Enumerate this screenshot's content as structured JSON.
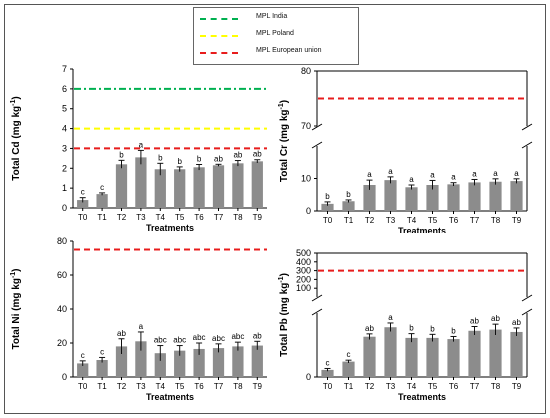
{
  "legend": {
    "items": [
      {
        "label": "MPL India",
        "color": "#00b050",
        "style": "dashdot"
      },
      {
        "label": "MPL Poland",
        "color": "#ffff00",
        "style": "dashed"
      },
      {
        "label": "MPL European union",
        "color": "#e81c1c",
        "style": "dashed"
      }
    ]
  },
  "colors": {
    "bar": "#8c8c8c",
    "axis": "#000000"
  },
  "chart_data": [
    {
      "id": "cd",
      "type": "bar",
      "ylabel": "Total Cd (mg kg-1)",
      "ylabel_parts": [
        "Total Cd (mg kg",
        "-1",
        ")"
      ],
      "xlabel": "Treatments",
      "categories": [
        "T0",
        "T1",
        "T2",
        "T3",
        "T4",
        "T5",
        "T6",
        "T7",
        "T8",
        "T9"
      ],
      "values": [
        0.4,
        0.7,
        2.2,
        2.55,
        1.95,
        1.95,
        2.05,
        2.15,
        2.25,
        2.35
      ],
      "errors": [
        0.12,
        0.06,
        0.2,
        0.35,
        0.3,
        0.12,
        0.14,
        0.05,
        0.14,
        0.08
      ],
      "letters": [
        "c",
        "c",
        "b",
        "a",
        "b",
        "b",
        "b",
        "ab",
        "ab",
        "ab"
      ],
      "ylim": [
        0,
        7
      ],
      "yticks": [
        "0",
        "1",
        "2",
        "3",
        "4",
        "5",
        "6",
        "7"
      ],
      "hlines": [
        {
          "y": 6,
          "legend": 0
        },
        {
          "y": 4,
          "legend": 1
        },
        {
          "y": 3,
          "legend": 2
        }
      ]
    },
    {
      "id": "cr",
      "type": "bar",
      "ylabel": "Total Cr (mg kg-1)",
      "ylabel_parts": [
        "Total Cr (mg kg",
        "-1",
        ")"
      ],
      "xlabel": "Treatments",
      "categories": [
        "T0",
        "T1",
        "T2",
        "T3",
        "T4",
        "T5",
        "T6",
        "T7",
        "T8",
        "T9"
      ],
      "values": [
        2.2,
        3.0,
        8.0,
        9.5,
        7.3,
        8.0,
        8.2,
        8.8,
        9.0,
        9.2
      ],
      "errors": [
        0.6,
        0.4,
        1.5,
        1.0,
        0.7,
        1.4,
        0.5,
        0.9,
        0.9,
        0.7
      ],
      "letters": [
        "b",
        "b",
        "a",
        "a",
        "a",
        "a",
        "a",
        "a",
        "a",
        "a"
      ],
      "ylim": [
        0,
        20
      ],
      "ylim_upper": [
        70,
        80
      ],
      "yticks_lower": [
        "0",
        "10"
      ],
      "yticks_upper": [
        "70",
        "80"
      ],
      "axis_break": true,
      "hlines": [
        {
          "y": 75,
          "legend": 2
        }
      ]
    },
    {
      "id": "ni",
      "type": "bar",
      "ylabel": "Total Ni (mg kg-1)",
      "ylabel_parts": [
        "Total Ni (mg kg",
        "-1",
        ")"
      ],
      "xlabel": "Treatments",
      "categories": [
        "T0",
        "T1",
        "T2",
        "T3",
        "T4",
        "T5",
        "T6",
        "T7",
        "T8",
        "T9"
      ],
      "values": [
        8,
        10,
        18,
        21,
        14,
        15.5,
        16.5,
        17,
        18,
        18.5
      ],
      "errors": [
        1.5,
        1.5,
        4.5,
        5.5,
        4.5,
        3.0,
        3.5,
        2.5,
        2.5,
        2.5
      ],
      "letters": [
        "c",
        "c",
        "ab",
        "a",
        "abc",
        "abc",
        "abc",
        "abc",
        "abc",
        "ab"
      ],
      "ylim": [
        0,
        80
      ],
      "yticks": [
        "0",
        "20",
        "40",
        "60",
        "80"
      ],
      "hlines": [
        {
          "y": 75,
          "legend": 2
        }
      ]
    },
    {
      "id": "pb",
      "type": "bar",
      "ylabel": "Total Pb (mg kg-1)",
      "ylabel_parts": [
        "Total Pb (mg kg",
        "-1",
        ")"
      ],
      "xlabel": "Treatments",
      "categories": [
        "T0",
        "T1",
        "T2",
        "T3",
        "T4",
        "T5",
        "T6",
        "T7",
        "T8",
        "T9"
      ],
      "values": [
        3,
        6.5,
        17,
        21,
        16.5,
        16.5,
        16,
        19.5,
        20,
        19
      ],
      "errors": [
        0.6,
        0.6,
        1.2,
        1.8,
        1.8,
        1.5,
        1.1,
        1.8,
        2.3,
        1.7
      ],
      "letters": [
        "c",
        "c",
        "ab",
        "a",
        "b",
        "b",
        "b",
        "ab",
        "ab",
        "ab"
      ],
      "ylim": [
        0,
        27
      ],
      "ylim_upper": [
        0,
        500
      ],
      "yticks_lower": [
        "0"
      ],
      "yticks_upper": [
        "100",
        "200",
        "300",
        "400",
        "500"
      ],
      "axis_break": true,
      "hlines": [
        {
          "y": 300,
          "legend": 2
        }
      ]
    }
  ]
}
